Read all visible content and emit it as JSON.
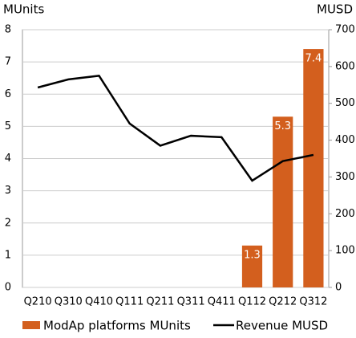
{
  "chart_data": {
    "type": "bar",
    "y_label": "MUnits",
    "y2_label": "MUSD",
    "categories": [
      "Q210",
      "Q310",
      "Q410",
      "Q111",
      "Q211",
      "Q311",
      "Q411",
      "Q112",
      "Q212",
      "Q312"
    ],
    "series": [
      {
        "name": "ModAp platforms MUnits",
        "type": "bar",
        "color": "#d35f1e",
        "values": [
          null,
          null,
          null,
          null,
          null,
          null,
          null,
          1.3,
          5.3,
          7.4
        ]
      },
      {
        "name": "Revenue MUSD",
        "type": "line",
        "axis": "y2",
        "color": "#000000",
        "values": [
          543,
          565,
          575,
          445,
          385,
          412,
          408,
          290,
          343,
          360
        ]
      }
    ],
    "ylim": [
      0,
      8
    ],
    "yticks": [
      0,
      1,
      2,
      3,
      4,
      5,
      6,
      7,
      8
    ],
    "y2lim": [
      0,
      700
    ],
    "y2ticks": [
      0,
      100,
      200,
      300,
      400,
      500,
      600,
      700
    ],
    "grid": true
  }
}
